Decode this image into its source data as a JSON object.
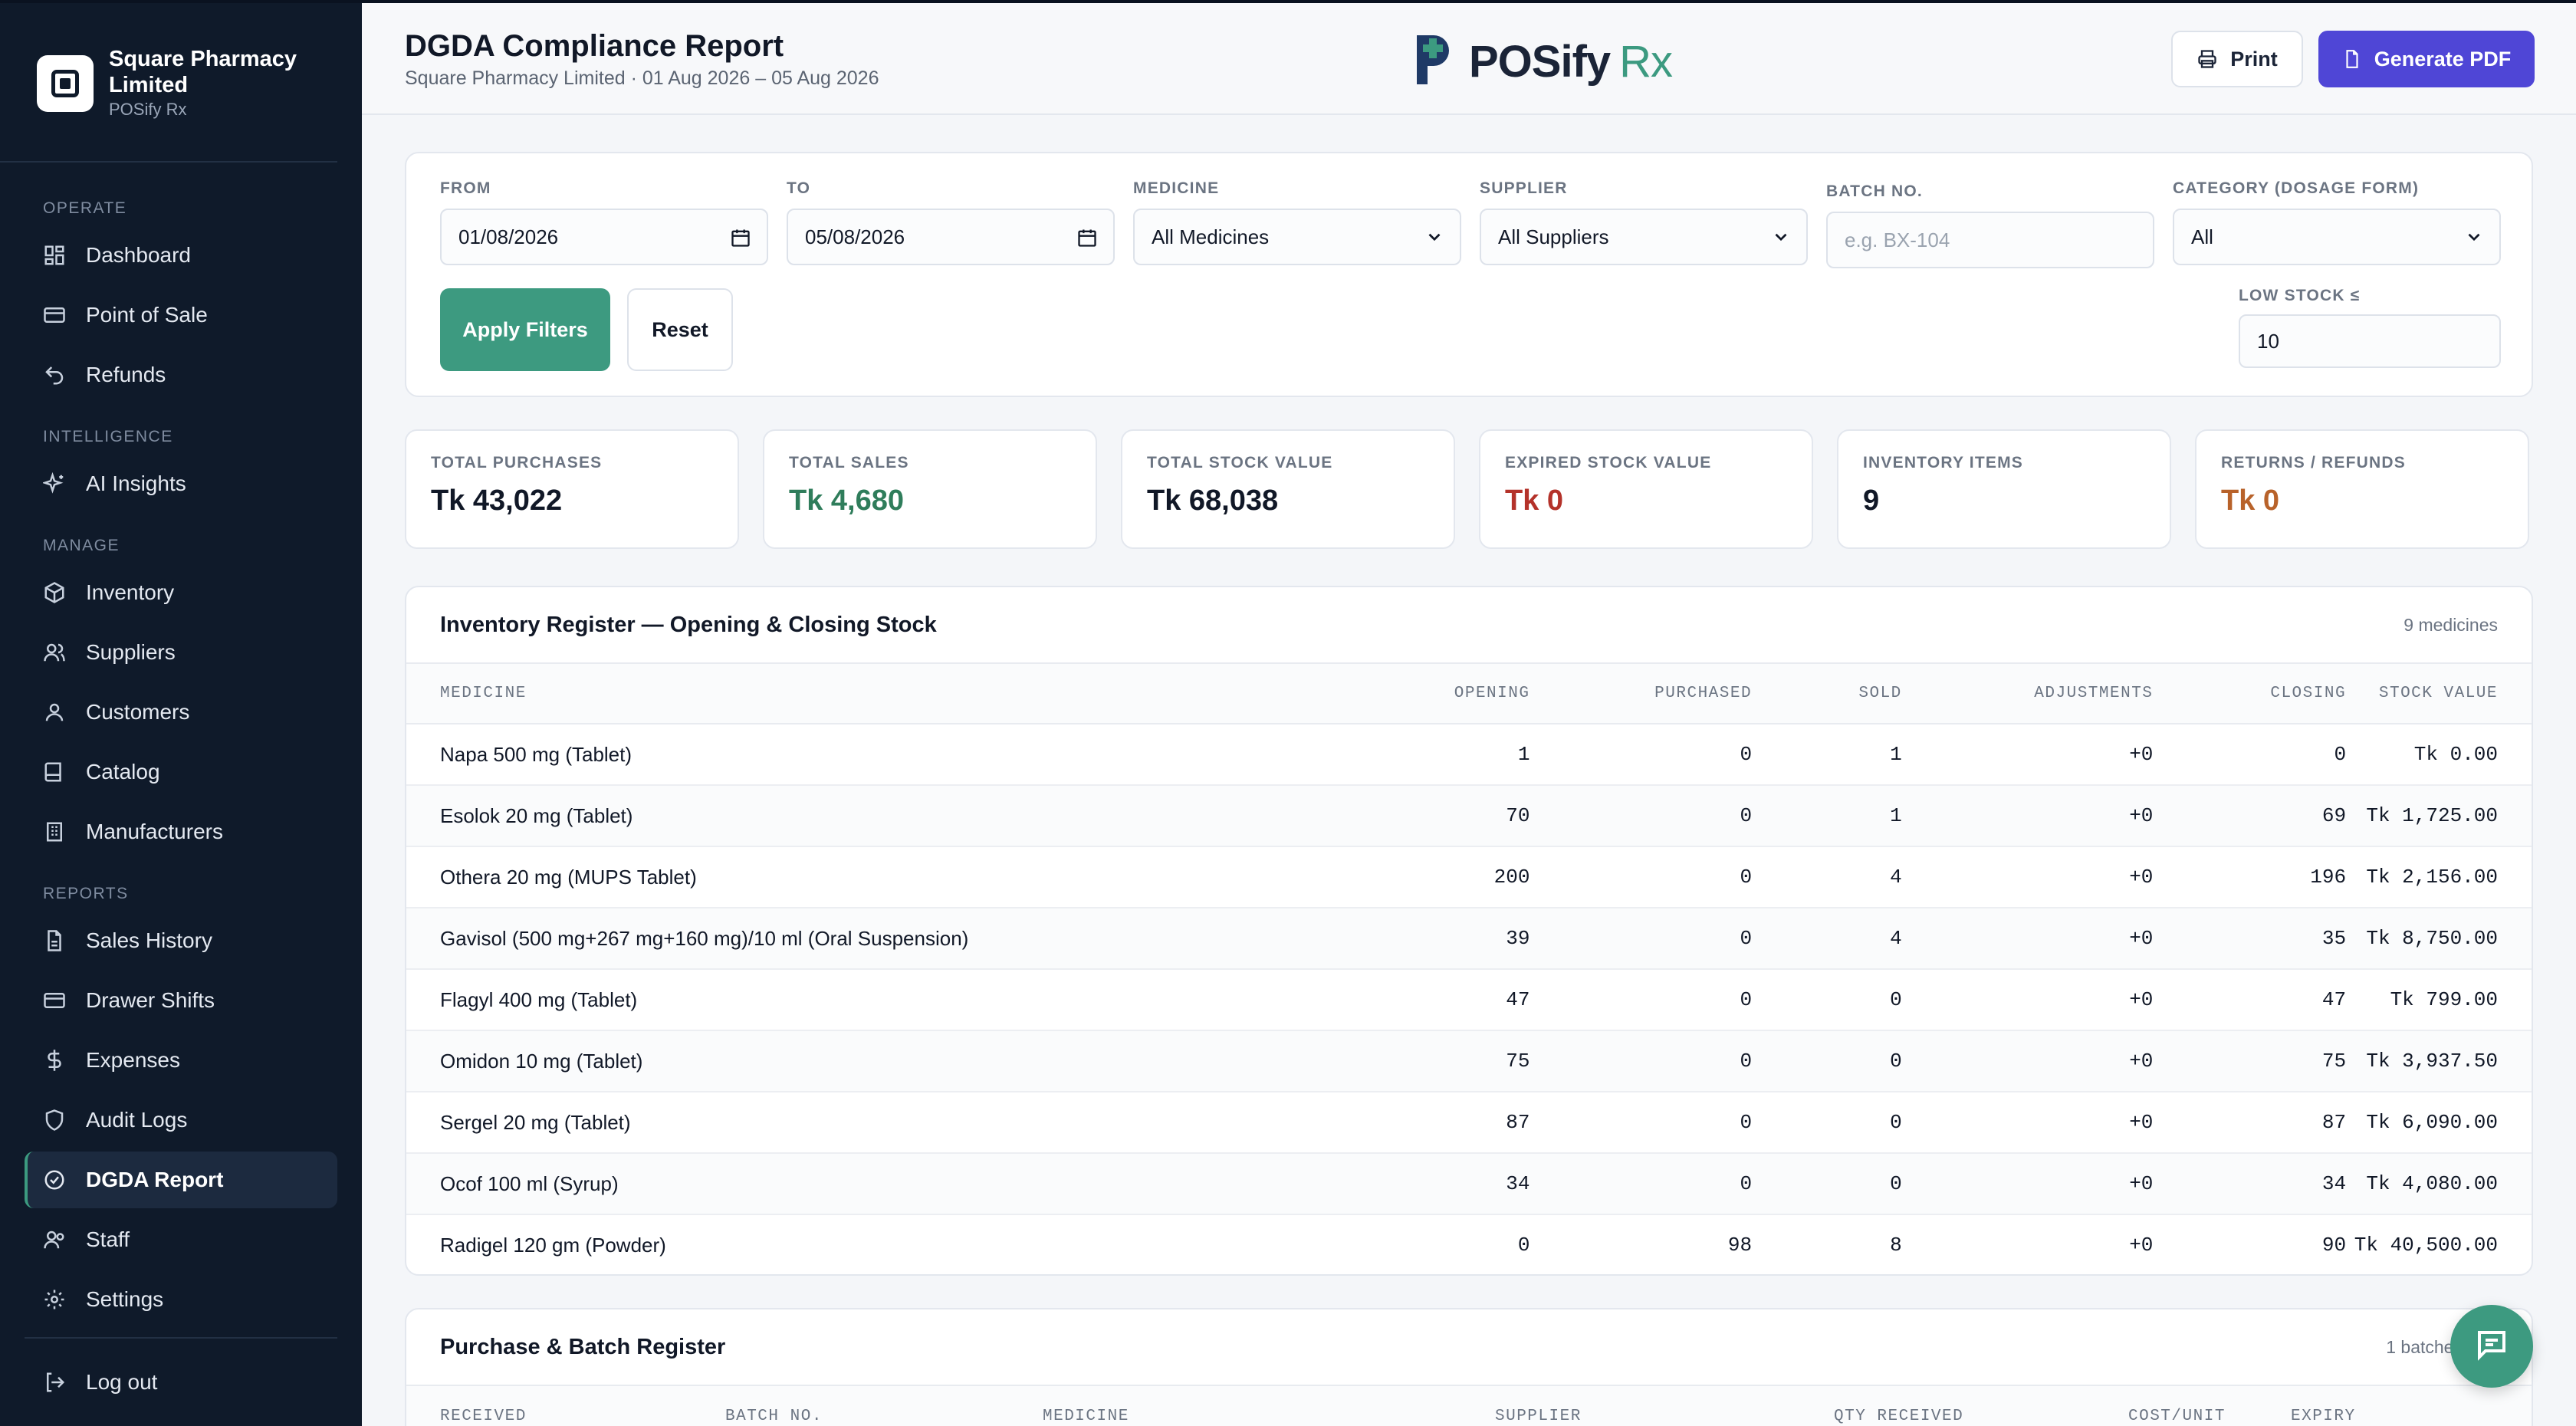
{
  "brand": {
    "name": "Square Pharmacy Limited",
    "sub": "POSify Rx"
  },
  "nav": {
    "sections": [
      "OPERATE",
      "INTELLIGENCE",
      "MANAGE",
      "REPORTS"
    ],
    "operate": [
      {
        "label": "Dashboard",
        "icon": "dashboard-icon"
      },
      {
        "label": "Point of Sale",
        "icon": "card-icon"
      },
      {
        "label": "Refunds",
        "icon": "undo-icon"
      }
    ],
    "intelligence": [
      {
        "label": "AI Insights",
        "icon": "sparkle-icon"
      }
    ],
    "manage": [
      {
        "label": "Inventory",
        "icon": "box-icon"
      },
      {
        "label": "Suppliers",
        "icon": "users-icon"
      },
      {
        "label": "Customers",
        "icon": "user-icon"
      },
      {
        "label": "Catalog",
        "icon": "book-icon"
      },
      {
        "label": "Manufacturers",
        "icon": "building-icon"
      }
    ],
    "reports": [
      {
        "label": "Sales History",
        "icon": "file-icon"
      },
      {
        "label": "Drawer Shifts",
        "icon": "drawer-icon"
      },
      {
        "label": "Expenses",
        "icon": "dollar-icon"
      },
      {
        "label": "Audit Logs",
        "icon": "shield-icon"
      },
      {
        "label": "DGDA Report",
        "icon": "check-circle-icon"
      },
      {
        "label": "Staff",
        "icon": "staff-icon"
      },
      {
        "label": "Settings",
        "icon": "gear-icon"
      }
    ],
    "logout": "Log out"
  },
  "header": {
    "title": "DGDA Compliance Report",
    "subtitle": "Square Pharmacy Limited · 01 Aug 2026 – 05 Aug 2026",
    "logo_text": "POSify",
    "logo_rx": "Rx",
    "print_label": "Print",
    "pdf_label": "Generate PDF"
  },
  "filters": {
    "from_label": "FROM",
    "from_value": "01/08/2026",
    "to_label": "TO",
    "to_value": "05/08/2026",
    "medicine_label": "MEDICINE",
    "medicine_value": "All Medicines",
    "supplier_label": "SUPPLIER",
    "supplier_value": "All Suppliers",
    "batch_label": "BATCH NO.",
    "batch_placeholder": "e.g. BX-104",
    "category_label": "CATEGORY (DOSAGE FORM)",
    "category_value": "All",
    "lowstock_label": "LOW STOCK ≤",
    "lowstock_value": "10",
    "apply_label": "Apply Filters",
    "reset_label": "Reset"
  },
  "stats": [
    {
      "label": "TOTAL PURCHASES",
      "value": "Tk 43,022",
      "color": "#111827"
    },
    {
      "label": "TOTAL SALES",
      "value": "Tk 4,680",
      "color": "#2f7d5b"
    },
    {
      "label": "TOTAL STOCK VALUE",
      "value": "Tk 68,038",
      "color": "#111827"
    },
    {
      "label": "EXPIRED STOCK VALUE",
      "value": "Tk 0",
      "color": "#b4322a"
    },
    {
      "label": "INVENTORY ITEMS",
      "value": "9",
      "color": "#111827"
    },
    {
      "label": "RETURNS / REFUNDS",
      "value": "Tk 0",
      "color": "#b8622a"
    }
  ],
  "inventory": {
    "title": "Inventory Register — Opening & Closing Stock",
    "meta": "9 medicines",
    "columns": [
      "MEDICINE",
      "OPENING",
      "PURCHASED",
      "SOLD",
      "ADJUSTMENTS",
      "CLOSING",
      "STOCK VALUE"
    ],
    "rows": [
      [
        "Napa 500 mg (Tablet)",
        "1",
        "0",
        "1",
        "+0",
        "0",
        "Tk 0.00"
      ],
      [
        "Esolok 20 mg (Tablet)",
        "70",
        "0",
        "1",
        "+0",
        "69",
        "Tk 1,725.00"
      ],
      [
        "Othera 20 mg (MUPS Tablet)",
        "200",
        "0",
        "4",
        "+0",
        "196",
        "Tk 2,156.00"
      ],
      [
        "Gavisol (500 mg+267 mg+160 mg)/10 ml (Oral Suspension)",
        "39",
        "0",
        "4",
        "+0",
        "35",
        "Tk 8,750.00"
      ],
      [
        "Flagyl 400 mg (Tablet)",
        "47",
        "0",
        "0",
        "+0",
        "47",
        "Tk 799.00"
      ],
      [
        "Omidon 10 mg (Tablet)",
        "75",
        "0",
        "0",
        "+0",
        "75",
        "Tk 3,937.50"
      ],
      [
        "Sergel 20 mg (Tablet)",
        "87",
        "0",
        "0",
        "+0",
        "87",
        "Tk 6,090.00"
      ],
      [
        "Ocof 100 ml (Syrup)",
        "34",
        "0",
        "0",
        "+0",
        "34",
        "Tk 4,080.00"
      ],
      [
        "Radigel 120 gm (Powder)",
        "0",
        "98",
        "8",
        "+0",
        "90",
        "Tk 40,500.00"
      ]
    ]
  },
  "purchase": {
    "title": "Purchase & Batch Register",
    "meta": "1 batches · 98",
    "columns": [
      "RECEIVED",
      "BATCH NO.",
      "MEDICINE",
      "SUPPLIER",
      "QTY RECEIVED",
      "COST/UNIT",
      "EXPIRY"
    ]
  }
}
